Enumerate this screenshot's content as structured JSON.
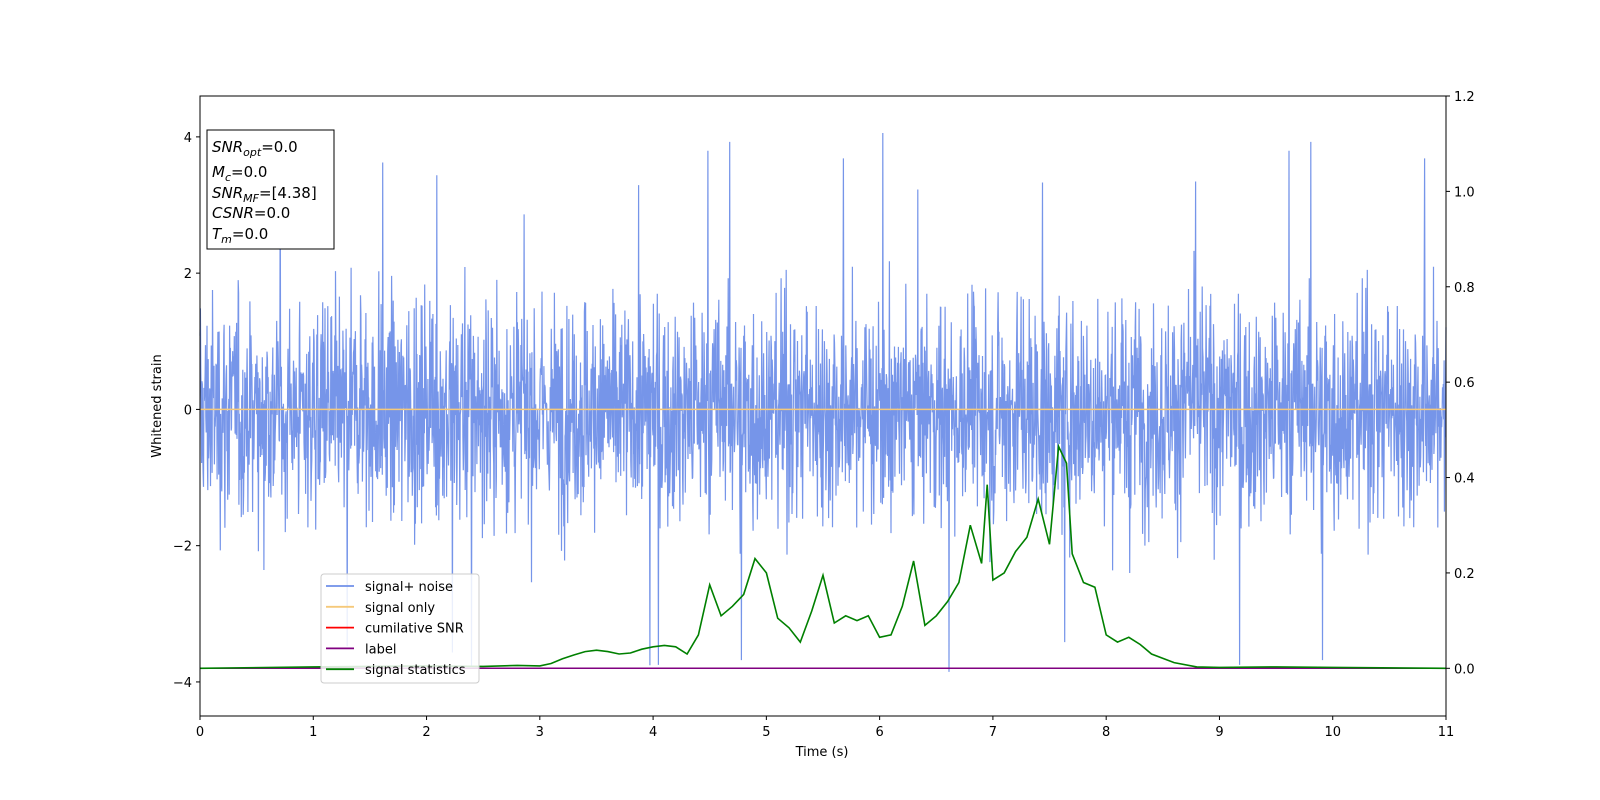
{
  "chart_data": {
    "type": "line",
    "xlabel": "Time (s)",
    "ylabel": "Whitened strain",
    "xlim": [
      0,
      11
    ],
    "ylim": [
      -4.5,
      4.6
    ],
    "ylim_right": [
      -0.1,
      1.2
    ],
    "xticks": [
      "0",
      "1",
      "2",
      "3",
      "4",
      "5",
      "6",
      "7",
      "8",
      "9",
      "10",
      "11"
    ],
    "yticks_left": [
      "−4",
      "−2",
      "0",
      "2",
      "4"
    ],
    "yticks_right": [
      "0.0",
      "0.2",
      "0.4",
      "0.6",
      "0.8",
      "1.0",
      "1.2"
    ],
    "legend_placement": "lower-left",
    "colors": {
      "signal_noise": "#6f8fe8",
      "signal_only": "#f5c97a",
      "cumulative_snr": "#ff0000",
      "label": "#800080",
      "signal_statistics": "#008000"
    },
    "series": [
      {
        "name": "signal+ noise",
        "axis": "left",
        "note_style": "dense noise band roughly within [-2.5, 2.5] with spikes near 4"
      },
      {
        "name": "signal only",
        "axis": "left",
        "values_x": [
          0,
          11
        ],
        "values_y": [
          0,
          0
        ]
      },
      {
        "name": "cumilative SNR",
        "axis": "right"
      },
      {
        "name": "label",
        "axis": "right",
        "values_x": [
          0,
          11
        ],
        "values_y": [
          0,
          0
        ]
      },
      {
        "name": "signal statistics",
        "axis": "right",
        "x": [
          0,
          1.0,
          2.0,
          2.5,
          2.8,
          3.0,
          3.1,
          3.2,
          3.3,
          3.4,
          3.5,
          3.6,
          3.7,
          3.8,
          3.9,
          4.0,
          4.1,
          4.2,
          4.3,
          4.4,
          4.5,
          4.6,
          4.7,
          4.8,
          4.9,
          5.0,
          5.1,
          5.2,
          5.3,
          5.4,
          5.5,
          5.6,
          5.7,
          5.8,
          5.9,
          6.0,
          6.1,
          6.2,
          6.3,
          6.4,
          6.5,
          6.6,
          6.7,
          6.8,
          6.9,
          6.95,
          7.0,
          7.1,
          7.2,
          7.3,
          7.4,
          7.5,
          7.58,
          7.65,
          7.7,
          7.8,
          7.9,
          8.0,
          8.1,
          8.2,
          8.3,
          8.4,
          8.6,
          8.8,
          9.0,
          9.5,
          10.0,
          11.0
        ],
        "y": [
          0.0,
          0.003,
          0.005,
          0.004,
          0.006,
          0.005,
          0.01,
          0.02,
          0.028,
          0.035,
          0.038,
          0.035,
          0.03,
          0.032,
          0.04,
          0.045,
          0.048,
          0.045,
          0.03,
          0.07,
          0.175,
          0.11,
          0.13,
          0.155,
          0.23,
          0.2,
          0.105,
          0.085,
          0.055,
          0.12,
          0.195,
          0.095,
          0.11,
          0.1,
          0.11,
          0.065,
          0.07,
          0.13,
          0.225,
          0.09,
          0.11,
          0.14,
          0.18,
          0.3,
          0.22,
          0.385,
          0.185,
          0.2,
          0.245,
          0.275,
          0.355,
          0.26,
          0.465,
          0.43,
          0.24,
          0.18,
          0.17,
          0.07,
          0.055,
          0.065,
          0.05,
          0.03,
          0.012,
          0.003,
          0.002,
          0.003,
          0.002,
          0.0
        ]
      }
    ]
  },
  "info_box": {
    "lines": [
      {
        "main": "SNR",
        "sub": "opt",
        "value": "=0.0"
      },
      {
        "main": "M",
        "sub": "c",
        "value": "=0.0"
      },
      {
        "main": "SNR",
        "sub": "MF",
        "value": "=[4.38]"
      },
      {
        "main": "CSNR",
        "sub": "",
        "value": "=0.0"
      },
      {
        "main": "T",
        "sub": "m",
        "value": "=0.0"
      }
    ]
  }
}
